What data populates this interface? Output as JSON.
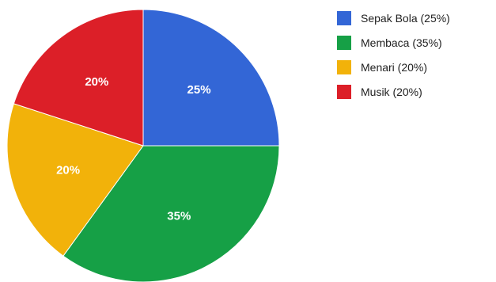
{
  "chart_data": {
    "type": "pie",
    "categories": [
      "Sepak Bola",
      "Membaca",
      "Menari",
      "Musik"
    ],
    "values": [
      25,
      35,
      20,
      20
    ],
    "slice_labels": [
      "25%",
      "35%",
      "20%",
      "20%"
    ],
    "legend": [
      "Sepak Bola (25%)",
      "Membaca (35%)",
      "Menari (20%)",
      "Musik (20%)"
    ],
    "colors": [
      "#3366d6",
      "#16a046",
      "#f2b20a",
      "#dc1f28"
    ],
    "start_angle_deg": 0,
    "direction": "clockwise",
    "legend_position": "right"
  }
}
